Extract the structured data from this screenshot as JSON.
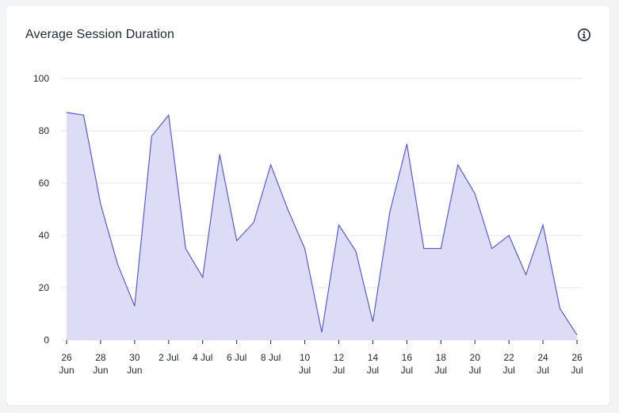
{
  "card": {
    "title": "Average Session Duration",
    "info_icon": "info-icon"
  },
  "chart_data": {
    "type": "area",
    "title": "Average Session Duration",
    "xlabel": "",
    "ylabel": "",
    "ylim": [
      0,
      100
    ],
    "yticks": [
      0,
      20,
      40,
      60,
      80,
      100
    ],
    "grid": true,
    "legend": "none",
    "color_line": "#5b5bd6",
    "color_fill": "#dcdcf7",
    "x": [
      "26 Jun",
      "27 Jun",
      "28 Jun",
      "29 Jun",
      "30 Jun",
      "1 Jul",
      "2 Jul",
      "3 Jul",
      "4 Jul",
      "5 Jul",
      "6 Jul",
      "7 Jul",
      "8 Jul",
      "9 Jul",
      "10 Jul",
      "11 Jul",
      "12 Jul",
      "13 Jul",
      "14 Jul",
      "15 Jul",
      "16 Jul",
      "17 Jul",
      "18 Jul",
      "19 Jul",
      "20 Jul",
      "21 Jul",
      "22 Jul",
      "23 Jul",
      "24 Jul",
      "25 Jul",
      "26 Jul"
    ],
    "values": [
      87,
      86,
      52,
      29,
      13,
      78,
      86,
      35,
      24,
      71,
      38,
      45,
      67,
      50,
      35,
      3,
      44,
      34,
      7,
      49,
      75,
      35,
      35,
      67,
      56,
      35,
      40,
      25,
      44,
      12,
      2
    ],
    "xtick_labels": [
      {
        "index": 0,
        "lines": [
          "26",
          "Jun"
        ]
      },
      {
        "index": 2,
        "lines": [
          "28",
          "Jun"
        ]
      },
      {
        "index": 4,
        "lines": [
          "30",
          "Jun"
        ]
      },
      {
        "index": 6,
        "lines": [
          "2 Jul"
        ]
      },
      {
        "index": 8,
        "lines": [
          "4 Jul"
        ]
      },
      {
        "index": 10,
        "lines": [
          "6 Jul"
        ]
      },
      {
        "index": 12,
        "lines": [
          "8 Jul"
        ]
      },
      {
        "index": 14,
        "lines": [
          "10",
          "Jul"
        ]
      },
      {
        "index": 16,
        "lines": [
          "12",
          "Jul"
        ]
      },
      {
        "index": 18,
        "lines": [
          "14",
          "Jul"
        ]
      },
      {
        "index": 20,
        "lines": [
          "16",
          "Jul"
        ]
      },
      {
        "index": 22,
        "lines": [
          "18",
          "Jul"
        ]
      },
      {
        "index": 24,
        "lines": [
          "20",
          "Jul"
        ]
      },
      {
        "index": 26,
        "lines": [
          "22",
          "Jul"
        ]
      },
      {
        "index": 28,
        "lines": [
          "24",
          "Jul"
        ]
      },
      {
        "index": 30,
        "lines": [
          "26",
          "Jul"
        ]
      }
    ]
  }
}
